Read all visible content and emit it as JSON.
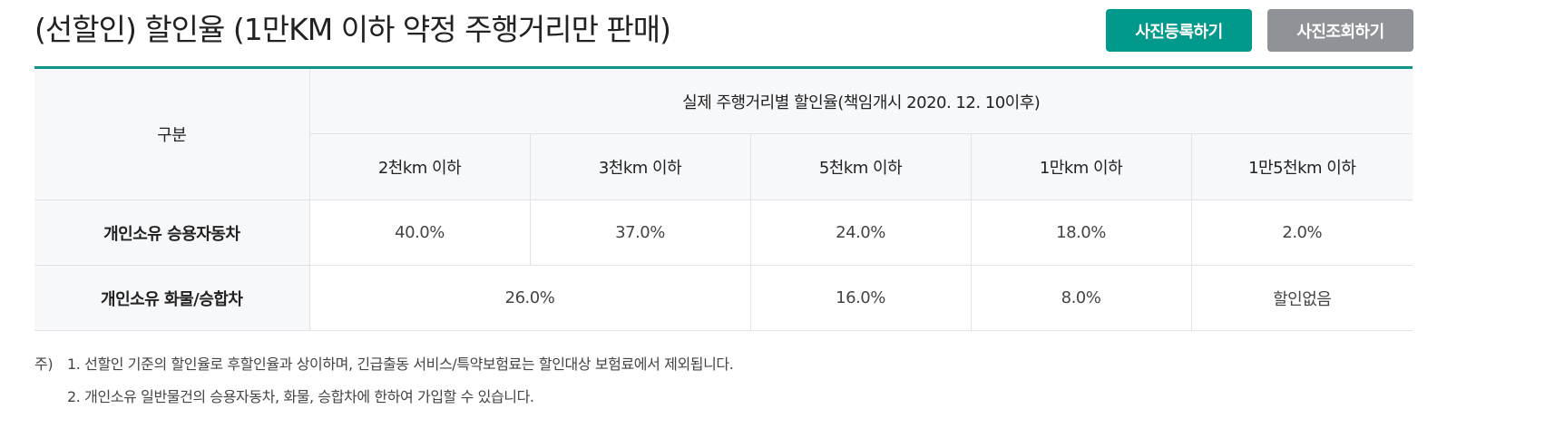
{
  "title": "(선할인) 할인율 (1만KM 이하 약정 주행거리만 판매)",
  "buttons": {
    "register": "사진등록하기",
    "lookup": "사진조회하기"
  },
  "colors": {
    "accent": "#00998b",
    "secondary_button": "#8f9398",
    "header_bg": "#f7f8fa"
  },
  "table": {
    "category_header": "구분",
    "group_header": "실제 주행거리별 할인율(책임개시 2020. 12. 10이후)",
    "columns": [
      "2천km 이하",
      "3천km 이하",
      "5천km 이하",
      "1만km 이하",
      "1만5천km 이하"
    ],
    "rows": [
      {
        "label": "개인소유 승용자동차",
        "values": [
          "40.0%",
          "37.0%",
          "24.0%",
          "18.0%",
          "2.0%"
        ]
      },
      {
        "label": "개인소유 화물/승합차",
        "values": [
          "26.0%",
          "16.0%",
          "8.0%",
          "할인없음"
        ]
      }
    ]
  },
  "notes": {
    "prefix": "주)",
    "items": [
      "1. 선할인 기준의 할인율로 후할인율과 상이하며, 긴급출동 서비스/특약보험료는 할인대상 보험료에서 제외됩니다.",
      "2. 개인소유 일반물건의 승용자동차, 화물, 승합차에 한하여 가입할 수 있습니다."
    ]
  }
}
